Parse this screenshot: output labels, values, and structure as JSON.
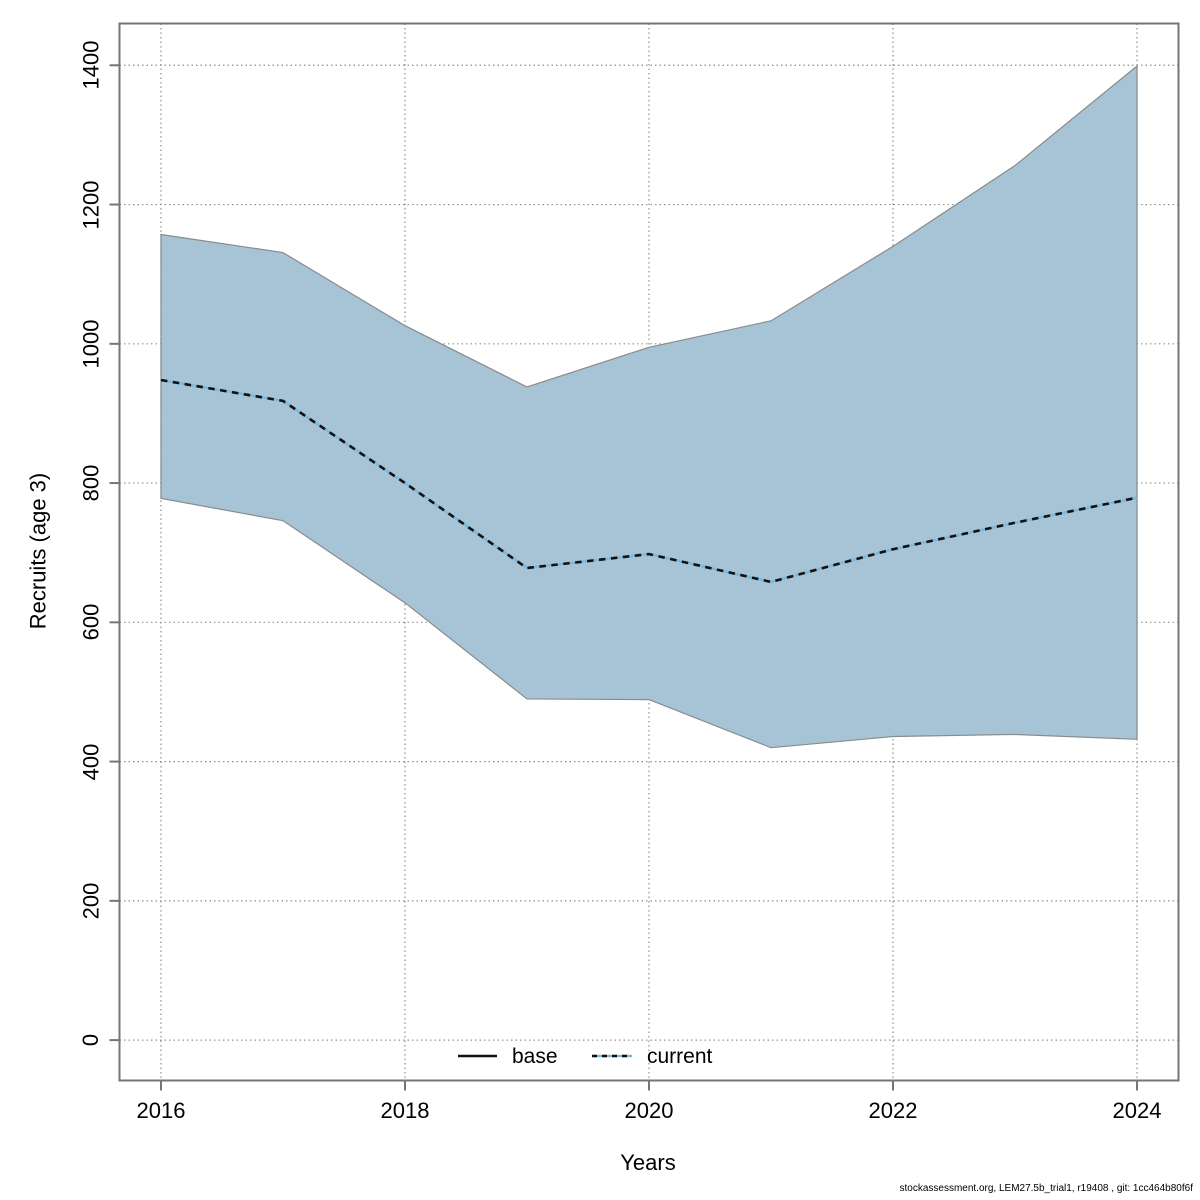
{
  "figure": {
    "footer": "stockassessment.org, LEM27.5b_trial1, r19408 , git: 1cc464b80f6f"
  },
  "chart_data": {
    "type": "area",
    "title": "",
    "xlabel": "Years",
    "ylabel": "Recruits (age 3)",
    "x": [
      2016,
      2017,
      2018,
      2019,
      2020,
      2021,
      2022,
      2023,
      2024
    ],
    "series": [
      {
        "name": "current",
        "role": "median-line",
        "style": "dotted-black-over-lightblue",
        "values": [
          948,
          918,
          800,
          678,
          698,
          658,
          705,
          743,
          779
        ]
      },
      {
        "name": "ci-lower",
        "role": "band-lower",
        "values": [
          778,
          746,
          628,
          490,
          489,
          420,
          436,
          439,
          432
        ]
      },
      {
        "name": "ci-upper",
        "role": "band-upper",
        "values": [
          1157,
          1131,
          1026,
          938,
          995,
          1033,
          1140,
          1256,
          1399
        ]
      }
    ],
    "legend": [
      {
        "label": "base",
        "style": "solid-black-line"
      },
      {
        "label": "current",
        "style": "dotted-blue-black-line"
      }
    ],
    "legend_position": "bottom-center-inside",
    "xticks": [
      2016,
      2018,
      2020,
      2022,
      2024
    ],
    "yticks": [
      0,
      200,
      400,
      600,
      800,
      1000,
      1200,
      1400
    ],
    "xlim": [
      2015.66,
      2024.34
    ],
    "ylim": [
      -58,
      1460
    ],
    "grid": true,
    "grid_style": "dotted",
    "colors": {
      "band_fill": "#a6c4d6",
      "band_border": "#8a8a8a",
      "median_black": "#111111",
      "median_blue": "#7fb8dc",
      "grid": "#8f8f8f",
      "frame": "#757575",
      "tick": "#757575",
      "text": "#000000"
    }
  }
}
